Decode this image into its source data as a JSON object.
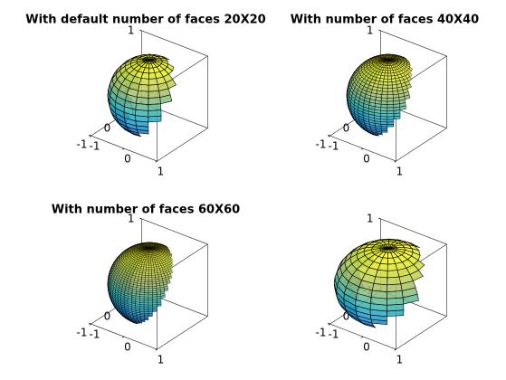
{
  "chart_data": [
    {
      "type": "surface",
      "title": "With default number of faces 20X20",
      "faces": 20,
      "radii": [
        1,
        1,
        1
      ],
      "view": [
        -37.5,
        30
      ],
      "xlim": [
        -1,
        1
      ],
      "ylim": [
        -1,
        1
      ],
      "zlim": [
        -1,
        1
      ],
      "xticks": [
        -1,
        0,
        1
      ],
      "yticks": [
        -1,
        0,
        1
      ],
      "zticks": [
        -1,
        0,
        1
      ]
    },
    {
      "type": "surface",
      "title": "With  number of faces 40X40",
      "faces": 40,
      "radii": [
        1,
        1,
        1
      ],
      "view": [
        -37.5,
        30
      ],
      "xlim": [
        -1,
        1
      ],
      "ylim": [
        -1,
        1
      ],
      "zlim": [
        -1,
        1
      ],
      "xticks": [
        -1,
        0,
        1
      ],
      "yticks": [
        -1,
        0,
        1
      ],
      "zticks": [
        -1,
        0,
        1
      ]
    },
    {
      "type": "surface",
      "title": "With  number of faces 60X60",
      "faces": 60,
      "radii": [
        1,
        1,
        1
      ],
      "view": [
        -37.5,
        30
      ],
      "xlim": [
        -1,
        1
      ],
      "ylim": [
        -1,
        1
      ],
      "zlim": [
        -1,
        1
      ],
      "xticks": [
        -1,
        0,
        1
      ],
      "yticks": [
        -1,
        0,
        1
      ],
      "zticks": [
        -1,
        0,
        1
      ]
    },
    {
      "type": "surface",
      "faces": 20,
      "radii": [
        1.3,
        1.3,
        1
      ],
      "view": [
        -37.5,
        30
      ],
      "xlim": [
        -1,
        1
      ],
      "ylim": [
        -1,
        1
      ],
      "zlim": [
        -1,
        1
      ],
      "xticks": [
        -1,
        0,
        1
      ],
      "yticks": [
        -1,
        0,
        1
      ],
      "zticks": [
        -1,
        0,
        1
      ]
    }
  ]
}
